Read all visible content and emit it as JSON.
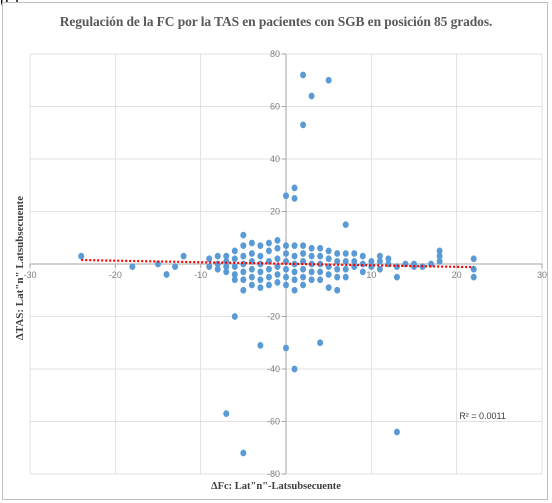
{
  "corner_label": "(c)",
  "chart_data": {
    "type": "scatter",
    "title": "Regulación de la  FC por la TAS en pacientes con SGB en posición 85 grados.",
    "xlabel": "ΔFc: Lat\"n\"-Latsubsecuente",
    "ylabel": "ΔTAS: Lat\"n\" Latsubsecuente",
    "xlim": [
      -30,
      30
    ],
    "ylim": [
      -80,
      80
    ],
    "x_ticks": [
      -30,
      -20,
      -10,
      10,
      20,
      30
    ],
    "y_ticks": [
      80,
      60,
      40,
      20,
      -20,
      -40,
      -60,
      -80
    ],
    "grid": true,
    "marker_color": "#5b9bd5",
    "trendline": {
      "x": [
        -24,
        22
      ],
      "y": [
        1.5,
        -1.2
      ],
      "color": "#ff0000",
      "style": "dotted"
    },
    "r2_label": "R² = 0.0011",
    "points": [
      [
        -24,
        3
      ],
      [
        -18,
        -1
      ],
      [
        -15,
        0
      ],
      [
        -14,
        -4
      ],
      [
        -13,
        -1
      ],
      [
        -12,
        3
      ],
      [
        2,
        72
      ],
      [
        5,
        70
      ],
      [
        3,
        64
      ],
      [
        2,
        53
      ],
      [
        1,
        29
      ],
      [
        1,
        25
      ],
      [
        0,
        26
      ],
      [
        7,
        15
      ],
      [
        -5,
        -10
      ],
      [
        -6,
        -20
      ],
      [
        -3,
        -31
      ],
      [
        0,
        -32
      ],
      [
        4,
        -30
      ],
      [
        1,
        -40
      ],
      [
        -7,
        -57
      ],
      [
        -5,
        -72
      ],
      [
        13,
        -64
      ],
      [
        -9,
        2
      ],
      [
        -9,
        -1
      ],
      [
        -8,
        3
      ],
      [
        -8,
        0
      ],
      [
        -8,
        -2
      ],
      [
        -7,
        3
      ],
      [
        -7,
        1
      ],
      [
        -7,
        -1
      ],
      [
        -7,
        -3
      ],
      [
        -6,
        5
      ],
      [
        -6,
        2
      ],
      [
        -6,
        -1
      ],
      [
        -6,
        -4
      ],
      [
        -6,
        -6
      ],
      [
        -5,
        11
      ],
      [
        -5,
        7
      ],
      [
        -5,
        3
      ],
      [
        -5,
        0
      ],
      [
        -5,
        -3
      ],
      [
        -5,
        -6
      ],
      [
        -4,
        8
      ],
      [
        -4,
        4
      ],
      [
        -4,
        1
      ],
      [
        -4,
        -2
      ],
      [
        -4,
        -5
      ],
      [
        -4,
        -8
      ],
      [
        -3,
        7
      ],
      [
        -3,
        3
      ],
      [
        -3,
        0
      ],
      [
        -3,
        -3
      ],
      [
        -3,
        -6
      ],
      [
        -3,
        -9
      ],
      [
        -2,
        8
      ],
      [
        -2,
        5
      ],
      [
        -2,
        1
      ],
      [
        -2,
        -2
      ],
      [
        -2,
        -5
      ],
      [
        -2,
        -8
      ],
      [
        -1,
        9
      ],
      [
        -1,
        6
      ],
      [
        -1,
        2
      ],
      [
        -1,
        -1
      ],
      [
        -1,
        -4
      ],
      [
        -1,
        -7
      ],
      [
        0,
        7
      ],
      [
        0,
        4
      ],
      [
        0,
        1
      ],
      [
        0,
        -2
      ],
      [
        0,
        -5
      ],
      [
        0,
        -8
      ],
      [
        1,
        7
      ],
      [
        1,
        3
      ],
      [
        1,
        0
      ],
      [
        1,
        -3
      ],
      [
        1,
        -6
      ],
      [
        1,
        -10
      ],
      [
        2,
        7
      ],
      [
        2,
        4
      ],
      [
        2,
        1
      ],
      [
        2,
        -2
      ],
      [
        2,
        -5
      ],
      [
        2,
        -8
      ],
      [
        3,
        6
      ],
      [
        3,
        3
      ],
      [
        3,
        0
      ],
      [
        3,
        -3
      ],
      [
        3,
        -6
      ],
      [
        4,
        6
      ],
      [
        4,
        3
      ],
      [
        4,
        0
      ],
      [
        4,
        -3
      ],
      [
        4,
        -6
      ],
      [
        5,
        5
      ],
      [
        5,
        2
      ],
      [
        5,
        -1
      ],
      [
        5,
        -4
      ],
      [
        5,
        -9
      ],
      [
        6,
        4
      ],
      [
        6,
        1
      ],
      [
        6,
        -2
      ],
      [
        6,
        -5
      ],
      [
        6,
        -10
      ],
      [
        7,
        4
      ],
      [
        7,
        1
      ],
      [
        7,
        -2
      ],
      [
        7,
        -5
      ],
      [
        8,
        4
      ],
      [
        8,
        1
      ],
      [
        8,
        -1
      ],
      [
        9,
        3
      ],
      [
        9,
        0
      ],
      [
        9,
        -3
      ],
      [
        10,
        1
      ],
      [
        10,
        -1
      ],
      [
        11,
        3
      ],
      [
        11,
        1
      ],
      [
        11,
        -2
      ],
      [
        12,
        2
      ],
      [
        12,
        0
      ],
      [
        13,
        -1
      ],
      [
        13,
        -5
      ],
      [
        14,
        0
      ],
      [
        15,
        0
      ],
      [
        15,
        -1
      ],
      [
        16,
        -1
      ],
      [
        17,
        0
      ],
      [
        18,
        5
      ],
      [
        18,
        3
      ],
      [
        18,
        1
      ],
      [
        22,
        2
      ],
      [
        22,
        -2
      ],
      [
        22,
        -5
      ]
    ]
  }
}
